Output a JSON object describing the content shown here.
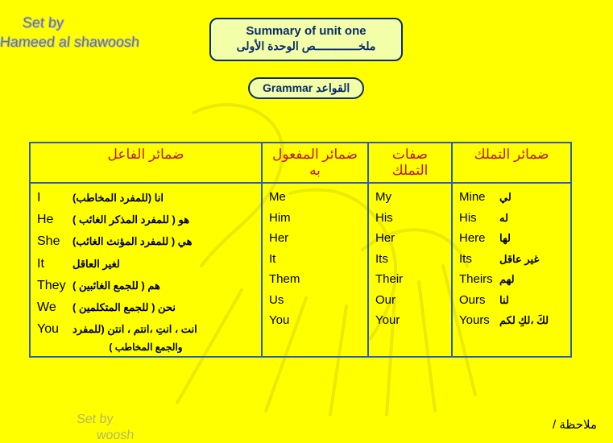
{
  "credit": {
    "line1": "Set by",
    "line2": "Hameed al shawoosh"
  },
  "credit_bottom": {
    "line1": "Set by",
    "line2": "woosh"
  },
  "header": {
    "en": "Summary of unit one",
    "ar": "ملخـــــــــــــص الوحدة الأولى"
  },
  "pill": "Grammar القواعد",
  "table": {
    "headers": {
      "c1": "ضمائر الفاعل",
      "c2": "ضمائر المفعول به",
      "c3": "صفات التملك",
      "c4": "ضمائر التملك"
    },
    "rows": [
      {
        "subj_en": "I",
        "subj_ar": "انا (للمفرد المخاطب)",
        "obj": "Me",
        "poss_adj": "My",
        "poss_pr_en": "Mine",
        "poss_pr_ar": "لي"
      },
      {
        "subj_en": "He",
        "subj_ar": "هو ( للمفرد المذكر الغائب )",
        "obj": "Him",
        "poss_adj": "His",
        "poss_pr_en": "His",
        "poss_pr_ar": "له"
      },
      {
        "subj_en": "She",
        "subj_ar": "هي ( للمفرد المؤنث الغائب)",
        "obj": "Her",
        "poss_adj": "Her",
        "poss_pr_en": "Here",
        "poss_pr_ar": "لها"
      },
      {
        "subj_en": "It",
        "subj_ar": "لغير العاقل",
        "obj": "It",
        "poss_adj": "Its",
        "poss_pr_en": "Its",
        "poss_pr_ar": "غير عاقل"
      },
      {
        "subj_en": "They",
        "subj_ar": "هم ( للجمع الغائبين )",
        "obj": "Them",
        "poss_adj": "Their",
        "poss_pr_en": "Theirs",
        "poss_pr_ar": "لهم"
      },
      {
        "subj_en": "We",
        "subj_ar": "نحن ( للجمع المتكلمين )",
        "obj": "Us",
        "poss_adj": "Our",
        "poss_pr_en": "Ours",
        "poss_pr_ar": "لنا"
      },
      {
        "subj_en": "You",
        "subj_ar": "انت ، انتِ ،انتم ، انتن (للمفرد",
        "obj": "You",
        "poss_adj": "Your",
        "poss_pr_en": "Yours",
        "poss_pr_ar": "لكَ ،لكِ لكم"
      }
    ],
    "you_extra": "والجمع المخاطب )"
  },
  "note": "ملاحظة /",
  "colors": {
    "page_bg": "#ffff00",
    "border": "#2a5fb0",
    "box_border": "#0b2a6b",
    "box_fill": "#f2ffa8",
    "header_text": "#c01818"
  }
}
